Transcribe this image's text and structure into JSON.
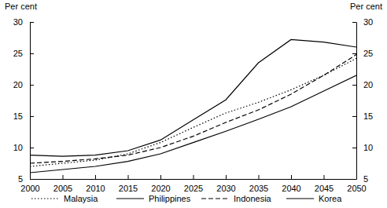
{
  "chart_data": {
    "type": "line",
    "y_label": "Per cent",
    "y2_label": "Per cent",
    "x": [
      2000,
      2005,
      2010,
      2015,
      2020,
      2025,
      2030,
      2035,
      2040,
      2045,
      2050
    ],
    "xlim": [
      2000,
      2050
    ],
    "xticks": [
      2000,
      2005,
      2010,
      2015,
      2020,
      2025,
      2030,
      2035,
      2040,
      2045,
      2050
    ],
    "ylim": [
      5,
      30
    ],
    "yticks": [
      5,
      10,
      15,
      20,
      25,
      30
    ],
    "y2lim": [
      5,
      30
    ],
    "y2ticks": [
      5,
      10,
      15,
      20,
      25,
      30
    ],
    "grid": false,
    "legend": "bottom",
    "series": [
      {
        "name": "Malaysia",
        "color": "#000000",
        "line_style": "dotted",
        "values": [
          7.0,
          7.5,
          8.0,
          9.0,
          10.8,
          13.2,
          15.5,
          17.2,
          19.2,
          21.5,
          24.2
        ]
      },
      {
        "name": "Philippines",
        "color": "#000000",
        "line_style": "solid",
        "values": [
          6.0,
          6.5,
          7.0,
          7.8,
          9.0,
          10.8,
          12.6,
          14.5,
          16.5,
          19.0,
          21.5
        ]
      },
      {
        "name": "Indonesia",
        "color": "#000000",
        "line_style": "dashed",
        "values": [
          7.5,
          7.8,
          8.2,
          8.8,
          10.0,
          11.8,
          14.0,
          16.0,
          18.5,
          21.5,
          24.8
        ]
      },
      {
        "name": "Korea",
        "color": "#000000",
        "line_style": "solid",
        "values": [
          8.8,
          8.6,
          8.8,
          9.5,
          11.2,
          14.4,
          17.6,
          23.5,
          27.2,
          26.8,
          26.0
        ]
      }
    ]
  }
}
